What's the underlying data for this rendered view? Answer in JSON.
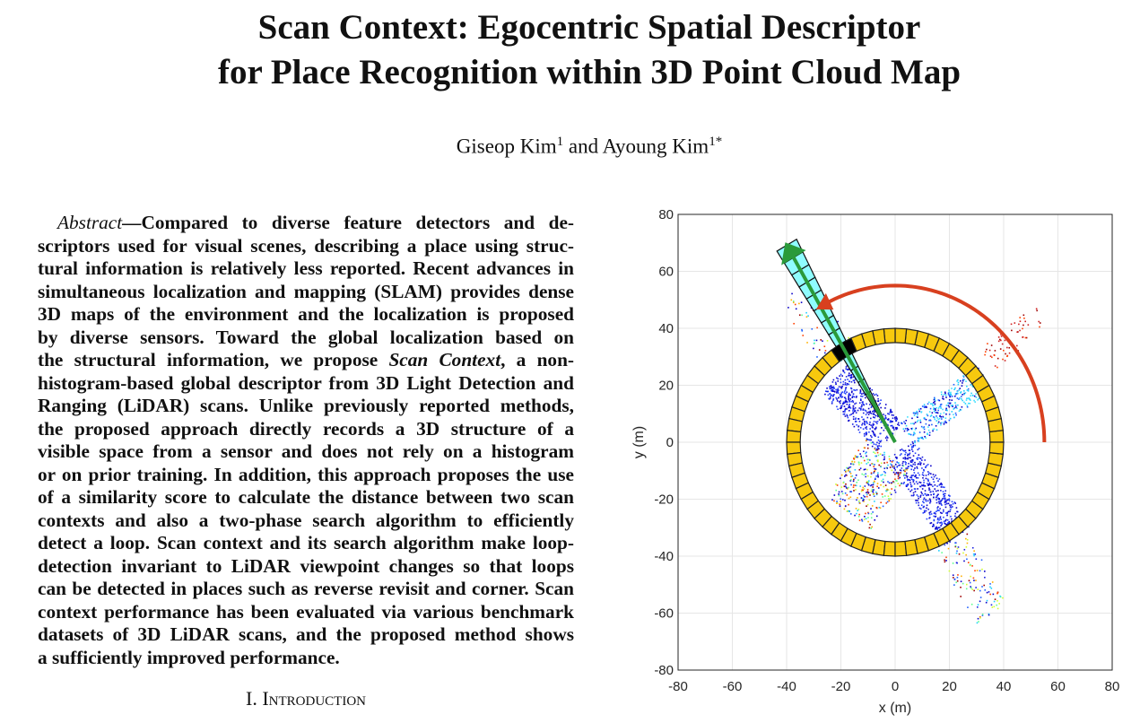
{
  "title": {
    "line1": "Scan Context: Egocentric Spatial Descriptor",
    "line2": "for Place Recognition within 3D Point Cloud Map"
  },
  "authors": {
    "author1": "Giseop Kim",
    "author1_sup": "1",
    "conj": " and ",
    "author2": "Ayoung Kim",
    "author2_sup": "1*"
  },
  "abstract": {
    "label": "Abstract",
    "dash": "—",
    "lines": [
      [
        {
          "t": "Compared to diverse feature detectors and de-"
        }
      ],
      [
        {
          "t": "scriptors used for visual scenes, describing a place using struc-"
        }
      ],
      [
        {
          "t": "tural information is relatively less reported. Recent advances in"
        }
      ],
      [
        {
          "t": "simultaneous localization and mapping (SLAM) provides dense"
        }
      ],
      [
        {
          "t": "3D maps of the environment and the localization is proposed"
        }
      ],
      [
        {
          "t": "by diverse sensors. Toward the global localization based on"
        }
      ],
      [
        {
          "t": "the structural information, we propose "
        },
        {
          "t": "Scan Context",
          "i": true
        },
        {
          "t": ", a non-"
        }
      ],
      [
        {
          "t": "histogram-based global descriptor from 3D Light Detection and"
        }
      ],
      [
        {
          "t": "Ranging (LiDAR) scans. Unlike previously reported methods,"
        }
      ],
      [
        {
          "t": "the proposed approach directly records a 3D structure of a"
        }
      ],
      [
        {
          "t": "visible space from a sensor and does not rely on a histogram"
        }
      ],
      [
        {
          "t": "or on prior training. In addition, this approach proposes the use"
        }
      ],
      [
        {
          "t": "of a similarity score to calculate the distance between two scan"
        }
      ],
      [
        {
          "t": "contexts and also a two-phase search algorithm to efficiently"
        }
      ],
      [
        {
          "t": "detect a loop. Scan context and its search algorithm make loop-"
        }
      ],
      [
        {
          "t": "detection invariant to LiDAR viewpoint changes so that loops"
        }
      ],
      [
        {
          "t": "can be detected in places such as reverse revisit and corner. Scan"
        }
      ],
      [
        {
          "t": "context performance has been evaluated via various benchmark"
        }
      ],
      [
        {
          "t": "datasets of 3D LiDAR scans, and the proposed method shows"
        }
      ],
      [
        {
          "t": "a sufficiently improved performance."
        }
      ]
    ]
  },
  "section": {
    "number": "I.",
    "title": "Introduction"
  },
  "colors": {
    "ring": "#f7c90e",
    "sector": "#8ffcff",
    "arrow_green": "#2a9a3a",
    "arc_red": "#d8401f",
    "grid": "#e6e6e6"
  },
  "chart_data": {
    "type": "scatter",
    "xlabel": "x (m)",
    "ylabel": "y (m)",
    "xlim": [
      -80,
      80
    ],
    "ylim": [
      -80,
      80
    ],
    "xticks": [
      -80,
      -60,
      -40,
      -20,
      0,
      20,
      40,
      60,
      80
    ],
    "yticks": [
      -80,
      -60,
      -40,
      -20,
      0,
      20,
      40,
      60,
      80
    ],
    "grid": true,
    "ring": {
      "inner_radius": 35,
      "outer_radius": 40,
      "sectors": 60
    },
    "highlight_sector_angle_deg": 120,
    "highlight_sector_max_range": 80,
    "rotation_arc": {
      "radius": 55,
      "from_deg": 0,
      "to_deg": 122
    }
  }
}
